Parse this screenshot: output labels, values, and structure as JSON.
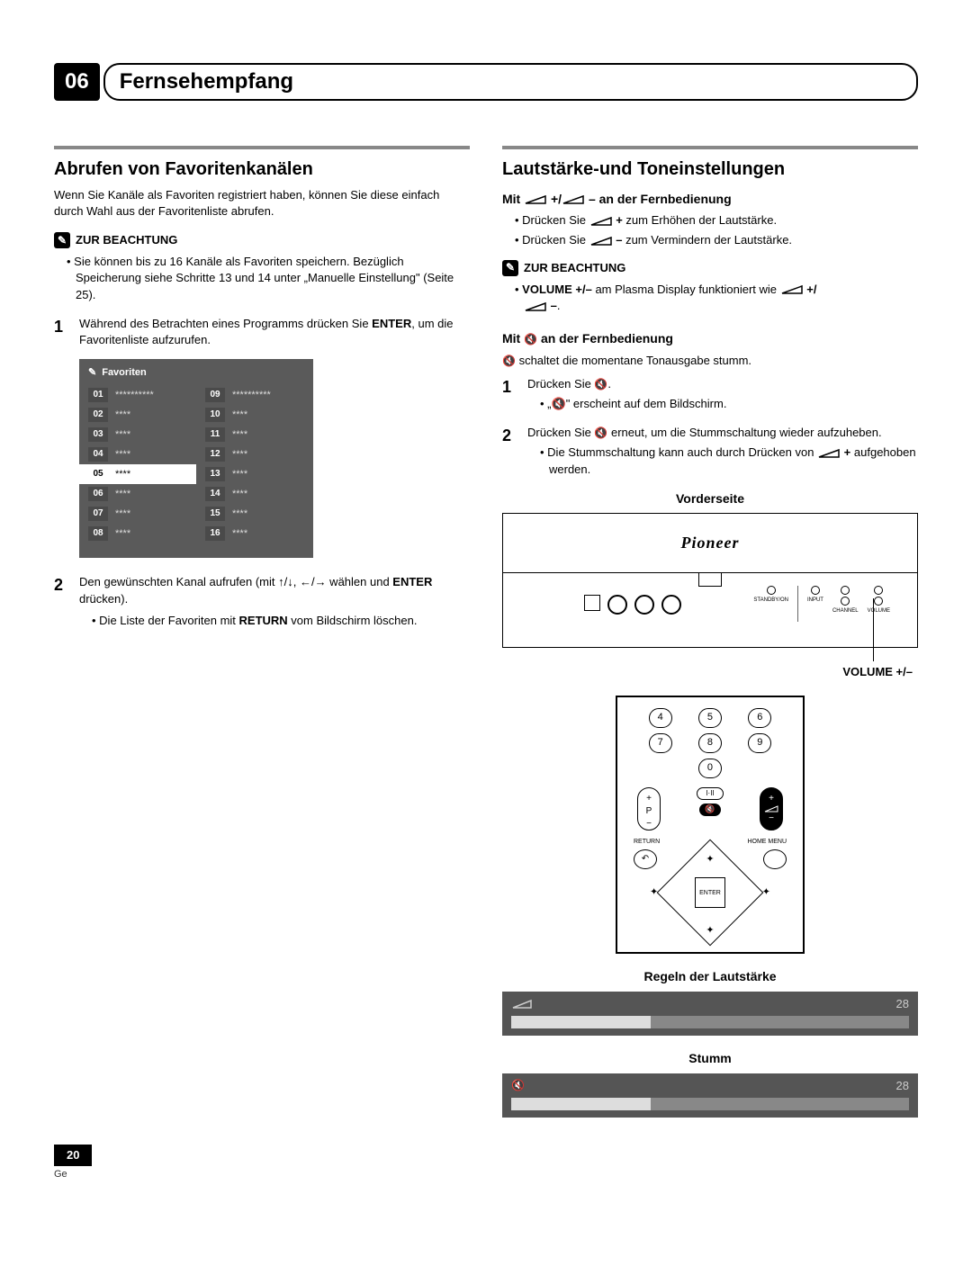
{
  "chapter": {
    "num": "06",
    "title": "Fernsehempfang"
  },
  "page": {
    "num": "20",
    "lang": "Ge"
  },
  "left": {
    "h2": "Abrufen von Favoritenkanälen",
    "intro": "Wenn Sie Kanäle als Favoriten registriert haben, können Sie diese einfach durch Wahl aus der Favoritenliste abrufen.",
    "noteHead": "ZUR BEACHTUNG",
    "noteBullets": [
      "Sie können bis zu 16 Kanäle als Favoriten speichern. Bezüglich Speicherung siehe Schritte 13 und 14 unter „Manuelle Einstellung\" (Seite 25)."
    ],
    "step1a": "Während des Betrachten eines Programms drücken Sie ",
    "step1b": "ENTER",
    "step1c": ", um die Favoritenliste aufzurufen.",
    "favTitle": "Favoriten",
    "favRows": [
      {
        "n": "01",
        "t": "**********"
      },
      {
        "n": "09",
        "t": "**********"
      },
      {
        "n": "02",
        "t": "****"
      },
      {
        "n": "10",
        "t": "****"
      },
      {
        "n": "03",
        "t": "****"
      },
      {
        "n": "11",
        "t": "****"
      },
      {
        "n": "04",
        "t": "****"
      },
      {
        "n": "12",
        "t": "****"
      },
      {
        "n": "05",
        "t": "****",
        "sel": true
      },
      {
        "n": "13",
        "t": "****"
      },
      {
        "n": "06",
        "t": "****"
      },
      {
        "n": "14",
        "t": "****"
      },
      {
        "n": "07",
        "t": "****"
      },
      {
        "n": "15",
        "t": "****"
      },
      {
        "n": "08",
        "t": "****"
      },
      {
        "n": "16",
        "t": "****"
      }
    ],
    "step2a": "Den gewünschten Kanal aufrufen (mit ↑/↓, ←/→ wählen und ",
    "step2b": "ENTER",
    "step2c": " drücken).",
    "step2sub1a": "Die Liste der Favoriten mit ",
    "step2sub1b": "RETURN",
    "step2sub1c": " vom Bildschirm löschen."
  },
  "right": {
    "h2": "Lautstärke-und Toneinstellungen",
    "sub1a": "Mit ",
    "sub1b": " +/",
    "sub1c": " – an der Fernbedienung",
    "b1a": "Drücken Sie ",
    "b1b": " + ",
    "b1c": "zum Erhöhen der Lautstärke.",
    "b2a": "Drücken Sie ",
    "b2b": " – ",
    "b2c": "zum Vermindern der Lautstärke.",
    "noteHead": "ZUR BEACHTUNG",
    "n1a": "VOLUME +/–",
    "n1b": " am Plasma Display funktioniert wie ",
    "n1c": " +/",
    "n1d": " –",
    "n1e": ".",
    "sub2a": "Mit ",
    "sub2b": " an der Fernbedienung",
    "muteLine": " schaltet die momentane Tonausgabe stumm.",
    "s1a": "Drücken Sie ",
    "s1b": ".",
    "s1sub": "„🔇\" erscheint auf dem Bildschirm.",
    "s2a": "Drücken Sie ",
    "s2b": " erneut, um die Stummschaltung wieder aufzuheben.",
    "s2sub1": "Die Stummschaltung kann auch durch Drücken von ",
    "s2sub2": " + ",
    "s2sub3": "aufgehoben werden.",
    "frontLabel": "Vorderseite",
    "logo": "Pioneer",
    "fpBtns": [
      "STANDBY/ON",
      "INPUT",
      "CHANNEL",
      "VOLUME"
    ],
    "volPm": "VOLUME +/–",
    "remote": {
      "nums": [
        "4",
        "5",
        "6",
        "7",
        "8",
        "9",
        "",
        "0",
        ""
      ],
      "iii": "I·II",
      "p": "P",
      "returnLbl": "RETURN",
      "menuLbl": "HOME MENU",
      "enter": "ENTER"
    },
    "regLabel": "Regeln der Lautstärke",
    "regVal": "28",
    "stumLabel": "Stumm",
    "stumVal": "28",
    "volFillPct": 35
  },
  "colors": {
    "boxBg": "#5a5a5a",
    "barBg": "#555555",
    "trackBg": "#888888",
    "fillBg": "#dddddd"
  }
}
